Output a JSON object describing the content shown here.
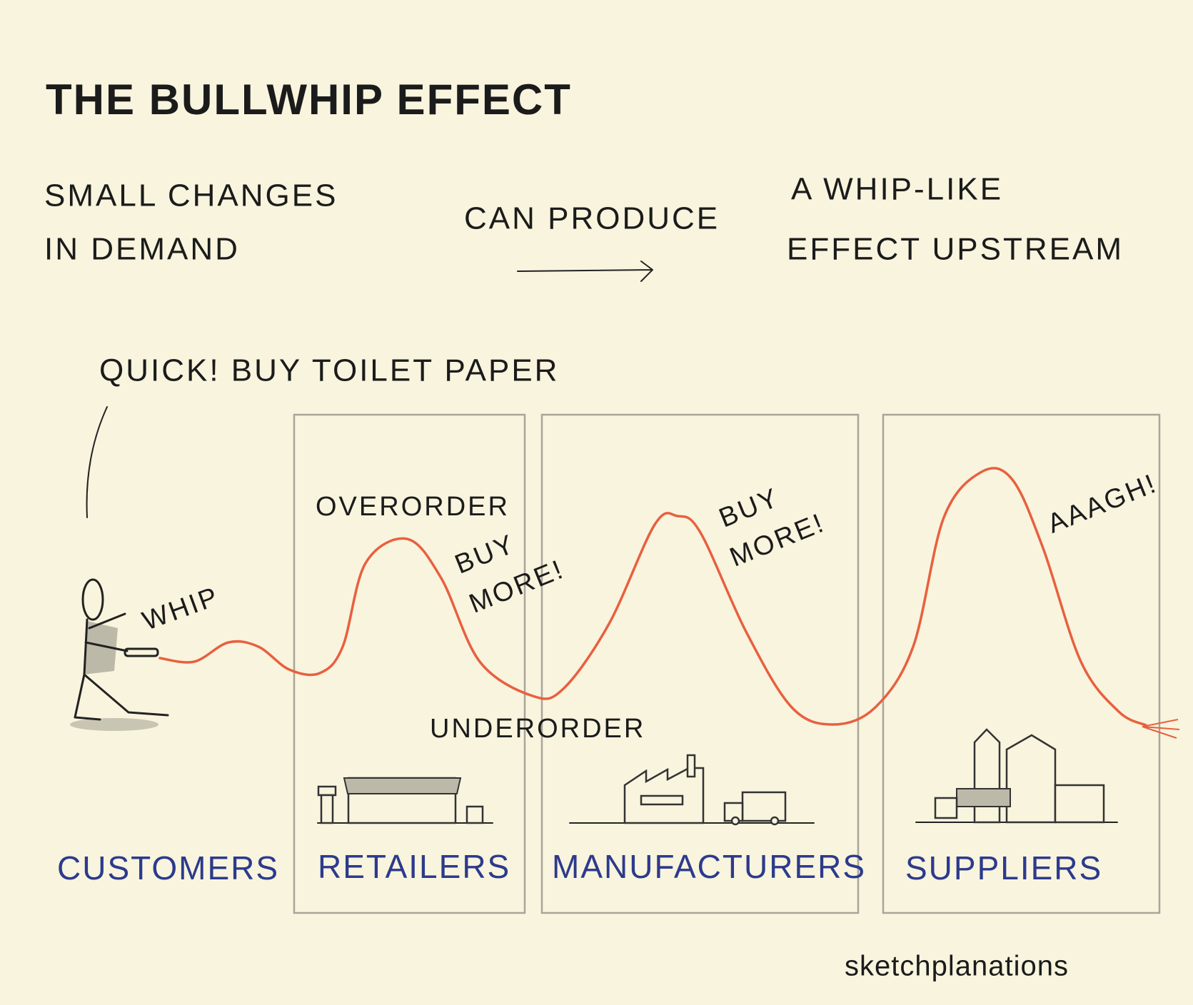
{
  "header": {
    "title": "THE BULLWHIP EFFECT"
  },
  "summary": {
    "cause": [
      "SMALL CHANGES",
      "IN DEMAND"
    ],
    "link": "CAN PRODUCE",
    "effect": [
      "A WHIP-LIKE",
      "EFFECT UPSTREAM"
    ]
  },
  "speech": "QUICK! BUY TOILET PAPER",
  "annotations": {
    "whip": "WHIP",
    "overorder": "OVERORDER",
    "underorder": "UNDERORDER",
    "retailer_shout": [
      "BUY",
      "MORE!"
    ],
    "manufacturer_shout": [
      "BUY",
      "MORE!"
    ],
    "supplier_shout": "AAAGH!"
  },
  "stages": [
    "CUSTOMERS",
    "RETAILERS",
    "MANUFACTURERS",
    "SUPPLIERS"
  ],
  "signature": "sketchplanations"
}
